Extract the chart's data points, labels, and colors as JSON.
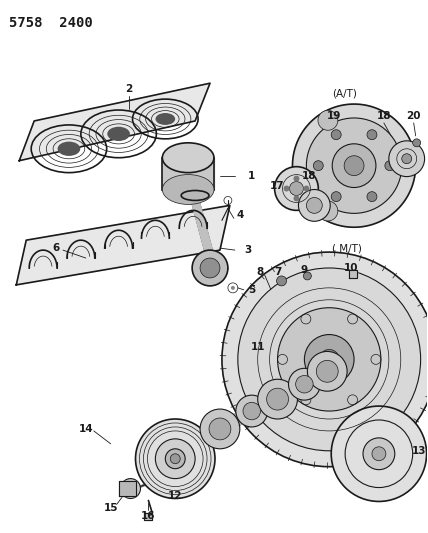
{
  "title_text": "5758  2400",
  "bg_color": "#ffffff",
  "line_color": "#1a1a1a",
  "fig_width": 4.28,
  "fig_height": 5.33,
  "dpi": 100,
  "title_fontsize": 10,
  "label_fontsize": 7.5
}
